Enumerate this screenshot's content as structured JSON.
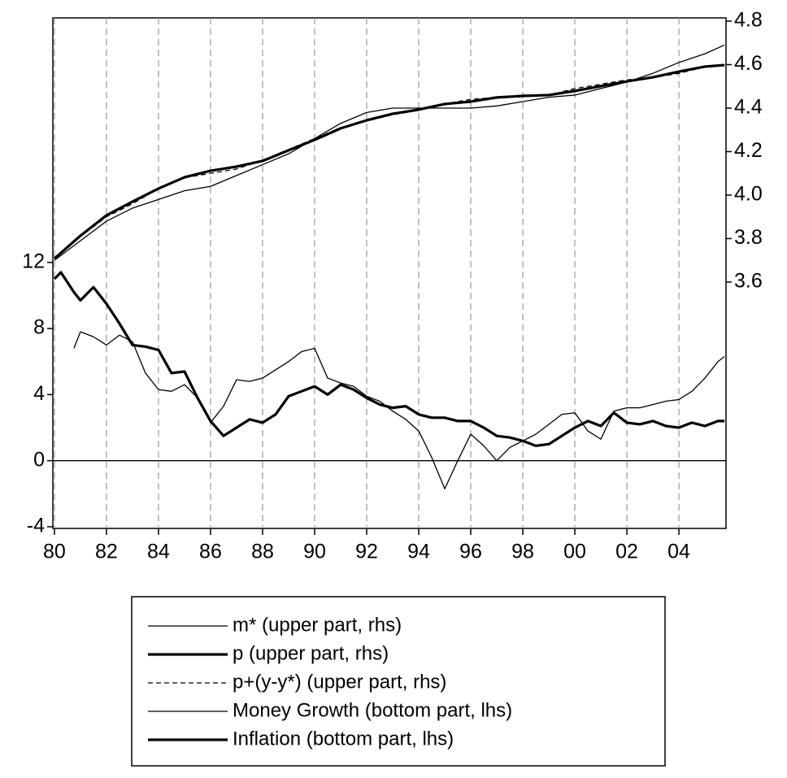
{
  "chart_data": {
    "type": "line",
    "xlim": [
      1979.94,
      2005.81
    ],
    "xticks": [
      {
        "value": 1980,
        "label": "80"
      },
      {
        "value": 1982,
        "label": "82"
      },
      {
        "value": 1984,
        "label": "84"
      },
      {
        "value": 1986,
        "label": "86"
      },
      {
        "value": 1988,
        "label": "88"
      },
      {
        "value": 1990,
        "label": "90"
      },
      {
        "value": 1992,
        "label": "92"
      },
      {
        "value": 1994,
        "label": "94"
      },
      {
        "value": 1996,
        "label": "96"
      },
      {
        "value": 1998,
        "label": "98"
      },
      {
        "value": 2000,
        "label": "00"
      },
      {
        "value": 2002,
        "label": "02"
      },
      {
        "value": 2004,
        "label": "04"
      }
    ],
    "ylim": [
      -4.1,
      26.8
    ],
    "yticks": [
      -4,
      0,
      4,
      8,
      12
    ],
    "y2lim": [
      2.467,
      4.815
    ],
    "y2ticks": [
      3.6,
      3.8,
      {
        "value": 4,
        "label": "4.0"
      },
      4.2,
      4.4,
      4.6,
      4.8
    ],
    "hline": 0,
    "grid": true,
    "series": [
      {
        "name": "m* (upper part, rhs)",
        "axis": "y2",
        "color": "#000000",
        "width": 1.3,
        "dash": false,
        "x": [
          1980,
          1981,
          1982,
          1983,
          1984,
          1985,
          1986,
          1987,
          1988,
          1989,
          1990,
          1991,
          1992,
          1993,
          1994,
          1995,
          1996,
          1997,
          1998,
          1999,
          2000,
          2001,
          2002,
          2003,
          2004,
          2005,
          2005.75
        ],
        "values": [
          3.7,
          3.79,
          3.88,
          3.94,
          3.98,
          4.02,
          4.04,
          4.09,
          4.14,
          4.19,
          4.26,
          4.33,
          4.38,
          4.4,
          4.4,
          4.4,
          4.4,
          4.41,
          4.43,
          4.45,
          4.46,
          4.49,
          4.52,
          4.56,
          4.61,
          4.65,
          4.69
        ]
      },
      {
        "name": "p (upper part, rhs)",
        "axis": "y2",
        "color": "#000000",
        "width": 3.2,
        "dash": false,
        "x": [
          1980,
          1981,
          1982,
          1983,
          1984,
          1985,
          1986,
          1987,
          1988,
          1989,
          1990,
          1991,
          1992,
          1993,
          1994,
          1995,
          1996,
          1997,
          1998,
          1999,
          2000,
          2001,
          2002,
          2003,
          2004,
          2005,
          2005.75
        ],
        "values": [
          3.708,
          3.813,
          3.907,
          3.97,
          4.03,
          4.082,
          4.112,
          4.131,
          4.157,
          4.206,
          4.254,
          4.307,
          4.344,
          4.374,
          4.393,
          4.419,
          4.43,
          4.449,
          4.456,
          4.46,
          4.479,
          4.501,
          4.523,
          4.542,
          4.568,
          4.591,
          4.598
        ]
      },
      {
        "name": "p+(y-y*) (upper part, rhs)",
        "axis": "y2",
        "color": "#000000",
        "width": 1.3,
        "dash": true,
        "x": [
          1980,
          1981,
          1982,
          1983,
          1984,
          1985,
          1986,
          1987,
          1988,
          1989,
          1990,
          1991,
          1992,
          1993,
          1994,
          1995,
          1996,
          1997,
          1998,
          1999,
          2000,
          2001,
          2002,
          2003,
          2004,
          2005,
          2005.75
        ],
        "values": [
          3.71,
          3.81,
          3.9,
          3.96,
          4.03,
          4.08,
          4.1,
          4.12,
          4.16,
          4.21,
          4.26,
          4.31,
          4.34,
          4.37,
          4.39,
          4.42,
          4.44,
          4.45,
          4.46,
          4.46,
          4.49,
          4.51,
          4.53,
          4.54,
          4.56,
          4.59,
          4.6
        ]
      },
      {
        "name": "Money Growth (bottom part, lhs)",
        "axis": "y",
        "color": "#000000",
        "width": 1.3,
        "dash": false,
        "x": [
          1980.75,
          1981,
          1981.5,
          1982,
          1982.5,
          1983,
          1983.5,
          1984,
          1984.5,
          1985,
          1985.5,
          1986,
          1986.5,
          1987,
          1987.5,
          1988,
          1988.5,
          1989,
          1989.5,
          1990,
          1990.5,
          1991,
          1991.5,
          1992,
          1992.5,
          1993,
          1993.5,
          1994,
          1994.5,
          1995,
          1995.5,
          1996,
          1996.5,
          1997,
          1997.5,
          1998,
          1998.5,
          1999,
          1999.5,
          2000,
          2000.5,
          2001,
          2001.5,
          2002,
          2002.5,
          2003,
          2003.5,
          2004,
          2004.5,
          2005,
          2005.5,
          2005.75
        ],
        "values": [
          6.8,
          7.8,
          7.5,
          7.0,
          7.6,
          7.2,
          5.3,
          4.3,
          4.2,
          4.6,
          3.8,
          2.3,
          3.3,
          4.9,
          4.8,
          5.0,
          5.5,
          6.0,
          6.6,
          6.8,
          5.0,
          4.7,
          4.5,
          3.9,
          3.6,
          3.0,
          2.5,
          1.8,
          0.2,
          -1.7,
          0.0,
          1.6,
          0.9,
          0.0,
          0.8,
          1.2,
          1.6,
          2.2,
          2.8,
          2.9,
          1.8,
          1.3,
          3.0,
          3.2,
          3.2,
          3.4,
          3.6,
          3.7,
          4.2,
          5.0,
          6.0,
          6.3
        ]
      },
      {
        "name": "Inflation (bottom part, lhs)",
        "axis": "y",
        "color": "#000000",
        "width": 3.2,
        "dash": false,
        "x": [
          1980,
          1980.25,
          1980.75,
          1981,
          1981.5,
          1982,
          1982.5,
          1983,
          1983.5,
          1984,
          1984.5,
          1985,
          1985.5,
          1986,
          1986.5,
          1987,
          1987.5,
          1988,
          1988.5,
          1989,
          1989.5,
          1990,
          1990.5,
          1991,
          1991.5,
          1992,
          1992.5,
          1993,
          1993.5,
          1994,
          1994.5,
          1995,
          1995.5,
          1996,
          1996.5,
          1997,
          1997.5,
          1998,
          1998.5,
          1999,
          1999.5,
          2000,
          2000.5,
          2001,
          2001.5,
          2002,
          2002.5,
          2003,
          2003.5,
          2004,
          2004.5,
          2005,
          2005.5,
          2005.75
        ],
        "values": [
          11.0,
          11.4,
          10.2,
          9.7,
          10.5,
          9.5,
          8.3,
          7.0,
          6.9,
          6.7,
          5.3,
          5.4,
          3.8,
          2.4,
          1.5,
          2.0,
          2.5,
          2.3,
          2.8,
          3.9,
          4.2,
          4.5,
          4.0,
          4.6,
          4.3,
          3.8,
          3.4,
          3.2,
          3.3,
          2.8,
          2.6,
          2.6,
          2.4,
          2.4,
          2.0,
          1.5,
          1.4,
          1.2,
          0.9,
          1.0,
          1.5,
          2.0,
          2.4,
          2.1,
          2.9,
          2.3,
          2.2,
          2.4,
          2.1,
          2.0,
          2.3,
          2.1,
          2.4,
          2.4
        ]
      }
    ]
  }
}
